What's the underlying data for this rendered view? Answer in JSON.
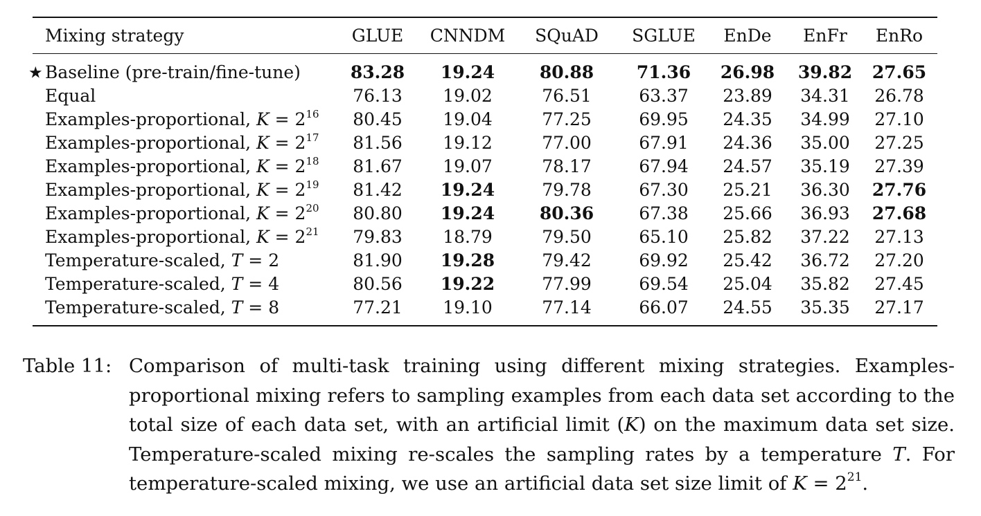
{
  "table": {
    "columns": [
      "Mixing strategy",
      "GLUE",
      "CNNDM",
      "SQuAD",
      "SGLUE",
      "EnDe",
      "EnFr",
      "EnRo"
    ],
    "rows": [
      {
        "marker": "★",
        "label": "Baseline (pre-train/fine-tune)",
        "label_var": "",
        "label_exp": "",
        "values": [
          "83.28",
          "19.24",
          "80.88",
          "71.36",
          "26.98",
          "39.82",
          "27.65"
        ],
        "bold": [
          true,
          true,
          true,
          true,
          true,
          true,
          true
        ]
      },
      {
        "marker": "",
        "label": "Equal",
        "label_var": "",
        "label_exp": "",
        "values": [
          "76.13",
          "19.02",
          "76.51",
          "63.37",
          "23.89",
          "34.31",
          "26.78"
        ],
        "bold": [
          false,
          false,
          false,
          false,
          false,
          false,
          false
        ]
      },
      {
        "marker": "",
        "label": "Examples-proportional, ",
        "label_var": "K",
        "label_exp": "16",
        "values": [
          "80.45",
          "19.04",
          "77.25",
          "69.95",
          "24.35",
          "34.99",
          "27.10"
        ],
        "bold": [
          false,
          false,
          false,
          false,
          false,
          false,
          false
        ]
      },
      {
        "marker": "",
        "label": "Examples-proportional, ",
        "label_var": "K",
        "label_exp": "17",
        "values": [
          "81.56",
          "19.12",
          "77.00",
          "67.91",
          "24.36",
          "35.00",
          "27.25"
        ],
        "bold": [
          false,
          false,
          false,
          false,
          false,
          false,
          false
        ]
      },
      {
        "marker": "",
        "label": "Examples-proportional, ",
        "label_var": "K",
        "label_exp": "18",
        "values": [
          "81.67",
          "19.07",
          "78.17",
          "67.94",
          "24.57",
          "35.19",
          "27.39"
        ],
        "bold": [
          false,
          false,
          false,
          false,
          false,
          false,
          false
        ]
      },
      {
        "marker": "",
        "label": "Examples-proportional, ",
        "label_var": "K",
        "label_exp": "19",
        "values": [
          "81.42",
          "19.24",
          "79.78",
          "67.30",
          "25.21",
          "36.30",
          "27.76"
        ],
        "bold": [
          false,
          true,
          false,
          false,
          false,
          false,
          true
        ]
      },
      {
        "marker": "",
        "label": "Examples-proportional, ",
        "label_var": "K",
        "label_exp": "20",
        "values": [
          "80.80",
          "19.24",
          "80.36",
          "67.38",
          "25.66",
          "36.93",
          "27.68"
        ],
        "bold": [
          false,
          true,
          true,
          false,
          false,
          false,
          true
        ]
      },
      {
        "marker": "",
        "label": "Examples-proportional, ",
        "label_var": "K",
        "label_exp": "21",
        "values": [
          "79.83",
          "18.79",
          "79.50",
          "65.10",
          "25.82",
          "37.22",
          "27.13"
        ],
        "bold": [
          false,
          false,
          false,
          false,
          false,
          false,
          false
        ]
      },
      {
        "marker": "",
        "label": "Temperature-scaled, ",
        "label_var": "T",
        "label_exp": "",
        "label_val": "2",
        "values": [
          "81.90",
          "19.28",
          "79.42",
          "69.92",
          "25.42",
          "36.72",
          "27.20"
        ],
        "bold": [
          false,
          true,
          false,
          false,
          false,
          false,
          false
        ]
      },
      {
        "marker": "",
        "label": "Temperature-scaled, ",
        "label_var": "T",
        "label_exp": "",
        "label_val": "4",
        "values": [
          "80.56",
          "19.22",
          "77.99",
          "69.54",
          "25.04",
          "35.82",
          "27.45"
        ],
        "bold": [
          false,
          true,
          false,
          false,
          false,
          false,
          false
        ]
      },
      {
        "marker": "",
        "label": "Temperature-scaled, ",
        "label_var": "T",
        "label_exp": "",
        "label_val": "8",
        "values": [
          "77.21",
          "19.10",
          "77.14",
          "66.07",
          "24.55",
          "35.35",
          "27.17"
        ],
        "bold": [
          false,
          false,
          false,
          false,
          false,
          false,
          false
        ]
      }
    ]
  },
  "caption": {
    "label": "Table 11:",
    "text_1": "Comparison of multi-task training using different mixing strategies. Examples-proportional mixing refers to sampling examples from each data set according to the total size of each data set, with an artificial limit (",
    "var_k": "K",
    "text_2": ") on the maximum data set size. Temperature-scaled mixing re-scales the sampling rates by a temperature ",
    "var_t": "T",
    "text_3": ". For temperature-scaled mixing, we use an artificial data set size limit of ",
    "var_k2": "K",
    "text_4": " = 2",
    "exp_k2": "21",
    "text_5": "."
  }
}
